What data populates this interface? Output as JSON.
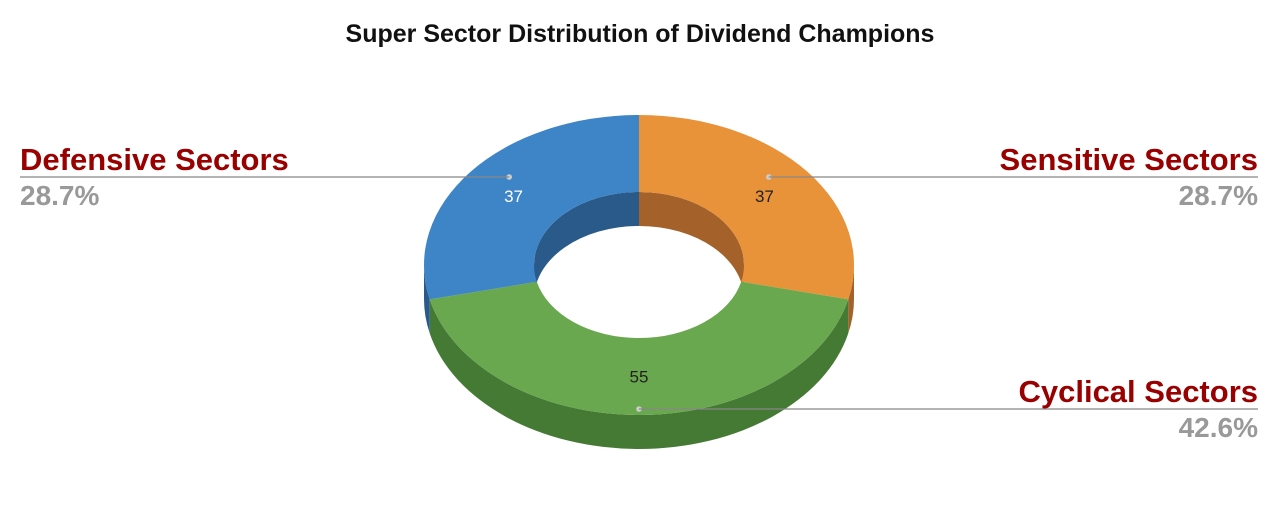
{
  "chart_data": {
    "type": "pie",
    "variant": "3d-donut",
    "title": "Super Sector Distribution of Dividend Champions",
    "legend_position": "callouts",
    "slices": [
      {
        "label": "Sensitive Sectors",
        "value": 37,
        "percent_label": "28.7%",
        "color": "#E8923A",
        "shadow_color": "#A4622A",
        "value_label_color": "#222222",
        "label_side": "right"
      },
      {
        "label": "Cyclical Sectors",
        "value": 55,
        "percent_label": "42.6%",
        "color": "#6AA84F",
        "shadow_color": "#457A34",
        "value_label_color": "#222222",
        "label_side": "right"
      },
      {
        "label": "Defensive Sectors",
        "value": 37,
        "percent_label": "28.7%",
        "color": "#3D85C6",
        "shadow_color": "#2A5A8A",
        "value_label_color": "#ffffff",
        "label_side": "left"
      }
    ],
    "colors": {
      "category_label": "#990000",
      "percent_label": "#999999",
      "leader_line": "#888888",
      "title": "#111111"
    }
  }
}
